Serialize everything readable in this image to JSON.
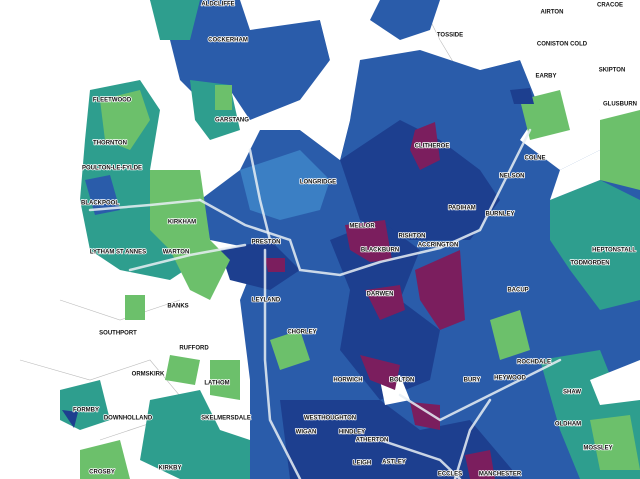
{
  "labels": [
    "ALDCLIFFE",
    "AIRTON",
    "CRACOE",
    "TOSSIDE",
    "CONISTON COLD",
    "SKIPTON",
    "COCKERHAM",
    "EARBY",
    "GLUSBURN",
    "GARSTANG",
    "FLEETWOOD",
    "THORNTON",
    "POULTON-LE-FYLDE",
    "CLITHEROE",
    "COLNE",
    "BLACKPOOL",
    "LONGRIDGE",
    "NELSON",
    "KIRKHAM",
    "PADIHAM",
    "BURNLEY",
    "LYTHAM ST ANNES",
    "WARTON",
    "PRESTON",
    "MELLOR",
    "BLACKBURN",
    "RISHTON",
    "ACCRINGTON",
    "HEPTONSTALL",
    "LEYLAND",
    "DARWEN",
    "BACUP",
    "TODMORDEN",
    "BANKS",
    "CHORLEY",
    "SOUTHPORT",
    "RUFFORD",
    "ROCHDALE",
    "LATHOM",
    "HORWICH",
    "BURY",
    "HEYWOOD",
    "ORMSKIRK",
    "BOLTON",
    "SHAW",
    "FORMBY",
    "DOWNHOLLAND",
    "SKELMERSDALE",
    "WESTHOUGHTON",
    "OLDHAM",
    "WIGAN",
    "HINDLEY",
    "ATHERTON",
    "MOSSLEY",
    "LEIGH",
    "ASTLEY",
    "CROSBY",
    "KIRKBY",
    "ECCLES",
    "MANCHESTER"
  ]
}
